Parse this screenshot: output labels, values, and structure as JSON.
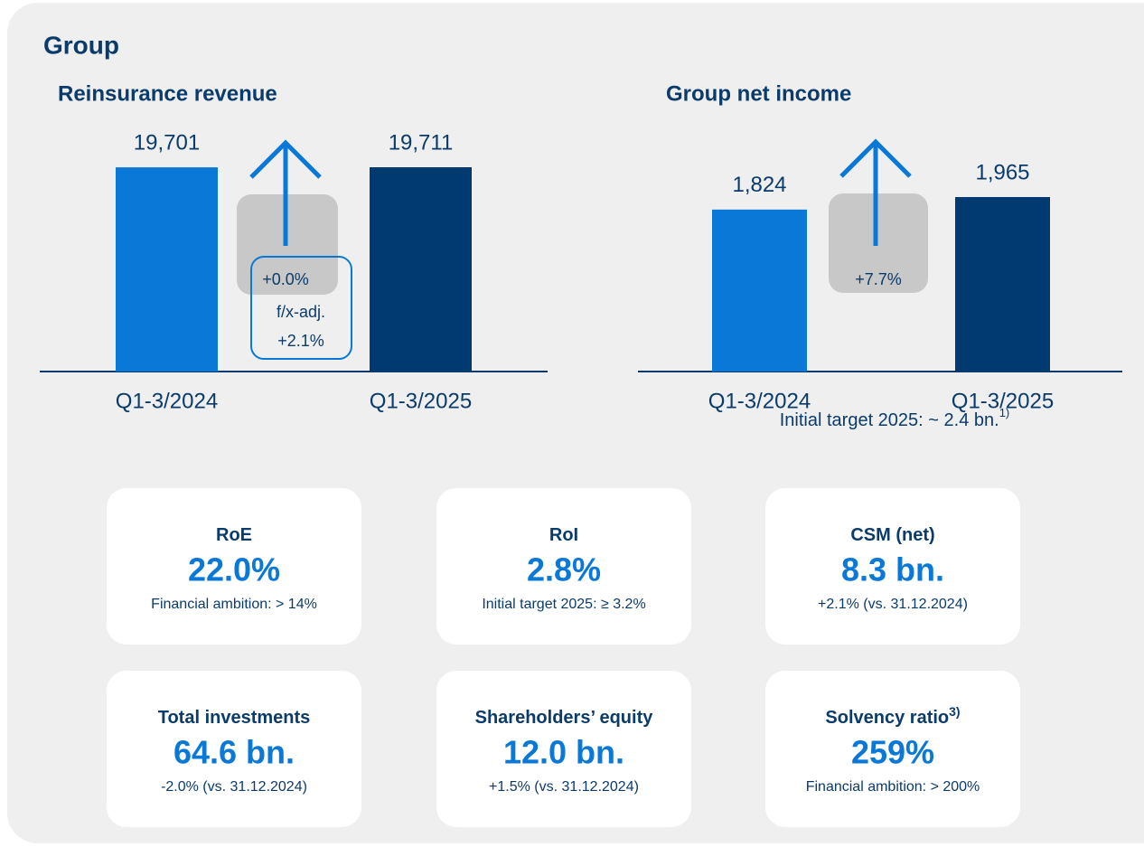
{
  "title": "Group",
  "chart_data": [
    {
      "type": "bar",
      "title": "Reinsurance revenue",
      "categories": [
        "Q1-3/2024",
        "Q1-3/2025"
      ],
      "values": [
        19701,
        19711
      ],
      "value_labels": [
        "19,701",
        "19,711"
      ],
      "colors": [
        "#0a78d7",
        "#003a70"
      ],
      "change_label": "+0.0%",
      "fx_adjusted_title": "f/x-adj.",
      "fx_adjusted_label": "+2.1%"
    },
    {
      "type": "bar",
      "title": "Group net income",
      "categories": [
        "Q1-3/2024",
        "Q1-3/2025"
      ],
      "values": [
        1824,
        1965
      ],
      "value_labels": [
        "1,824",
        "1,965"
      ],
      "colors": [
        "#0a78d7",
        "#003a70"
      ],
      "change_label": "+7.7%",
      "footnote": "Initial target 2025: ~ 2.4 bn.",
      "footnote_ref": "1)"
    }
  ],
  "kpis": [
    {
      "title": "RoE",
      "value": "22.0%",
      "note": "Financial ambition: > 14%"
    },
    {
      "title": "RoI",
      "value": "2.8%",
      "note": "Initial target 2025: ≥ 3.2%"
    },
    {
      "title": "CSM (net)",
      "value": "8.3 bn.",
      "note": "+2.1% (vs. 31.12.2024)"
    },
    {
      "title": "Total investments",
      "value": "64.6 bn.",
      "note": "-2.0% (vs. 31.12.2024)"
    },
    {
      "title": "Shareholders’ equity",
      "value": "12.0 bn.",
      "note": "+1.5% (vs. 31.12.2024)"
    },
    {
      "title": "Solvency ratio",
      "title_ref": "3)",
      "value": "259%",
      "note": "Financial ambition: > 200%"
    }
  ]
}
